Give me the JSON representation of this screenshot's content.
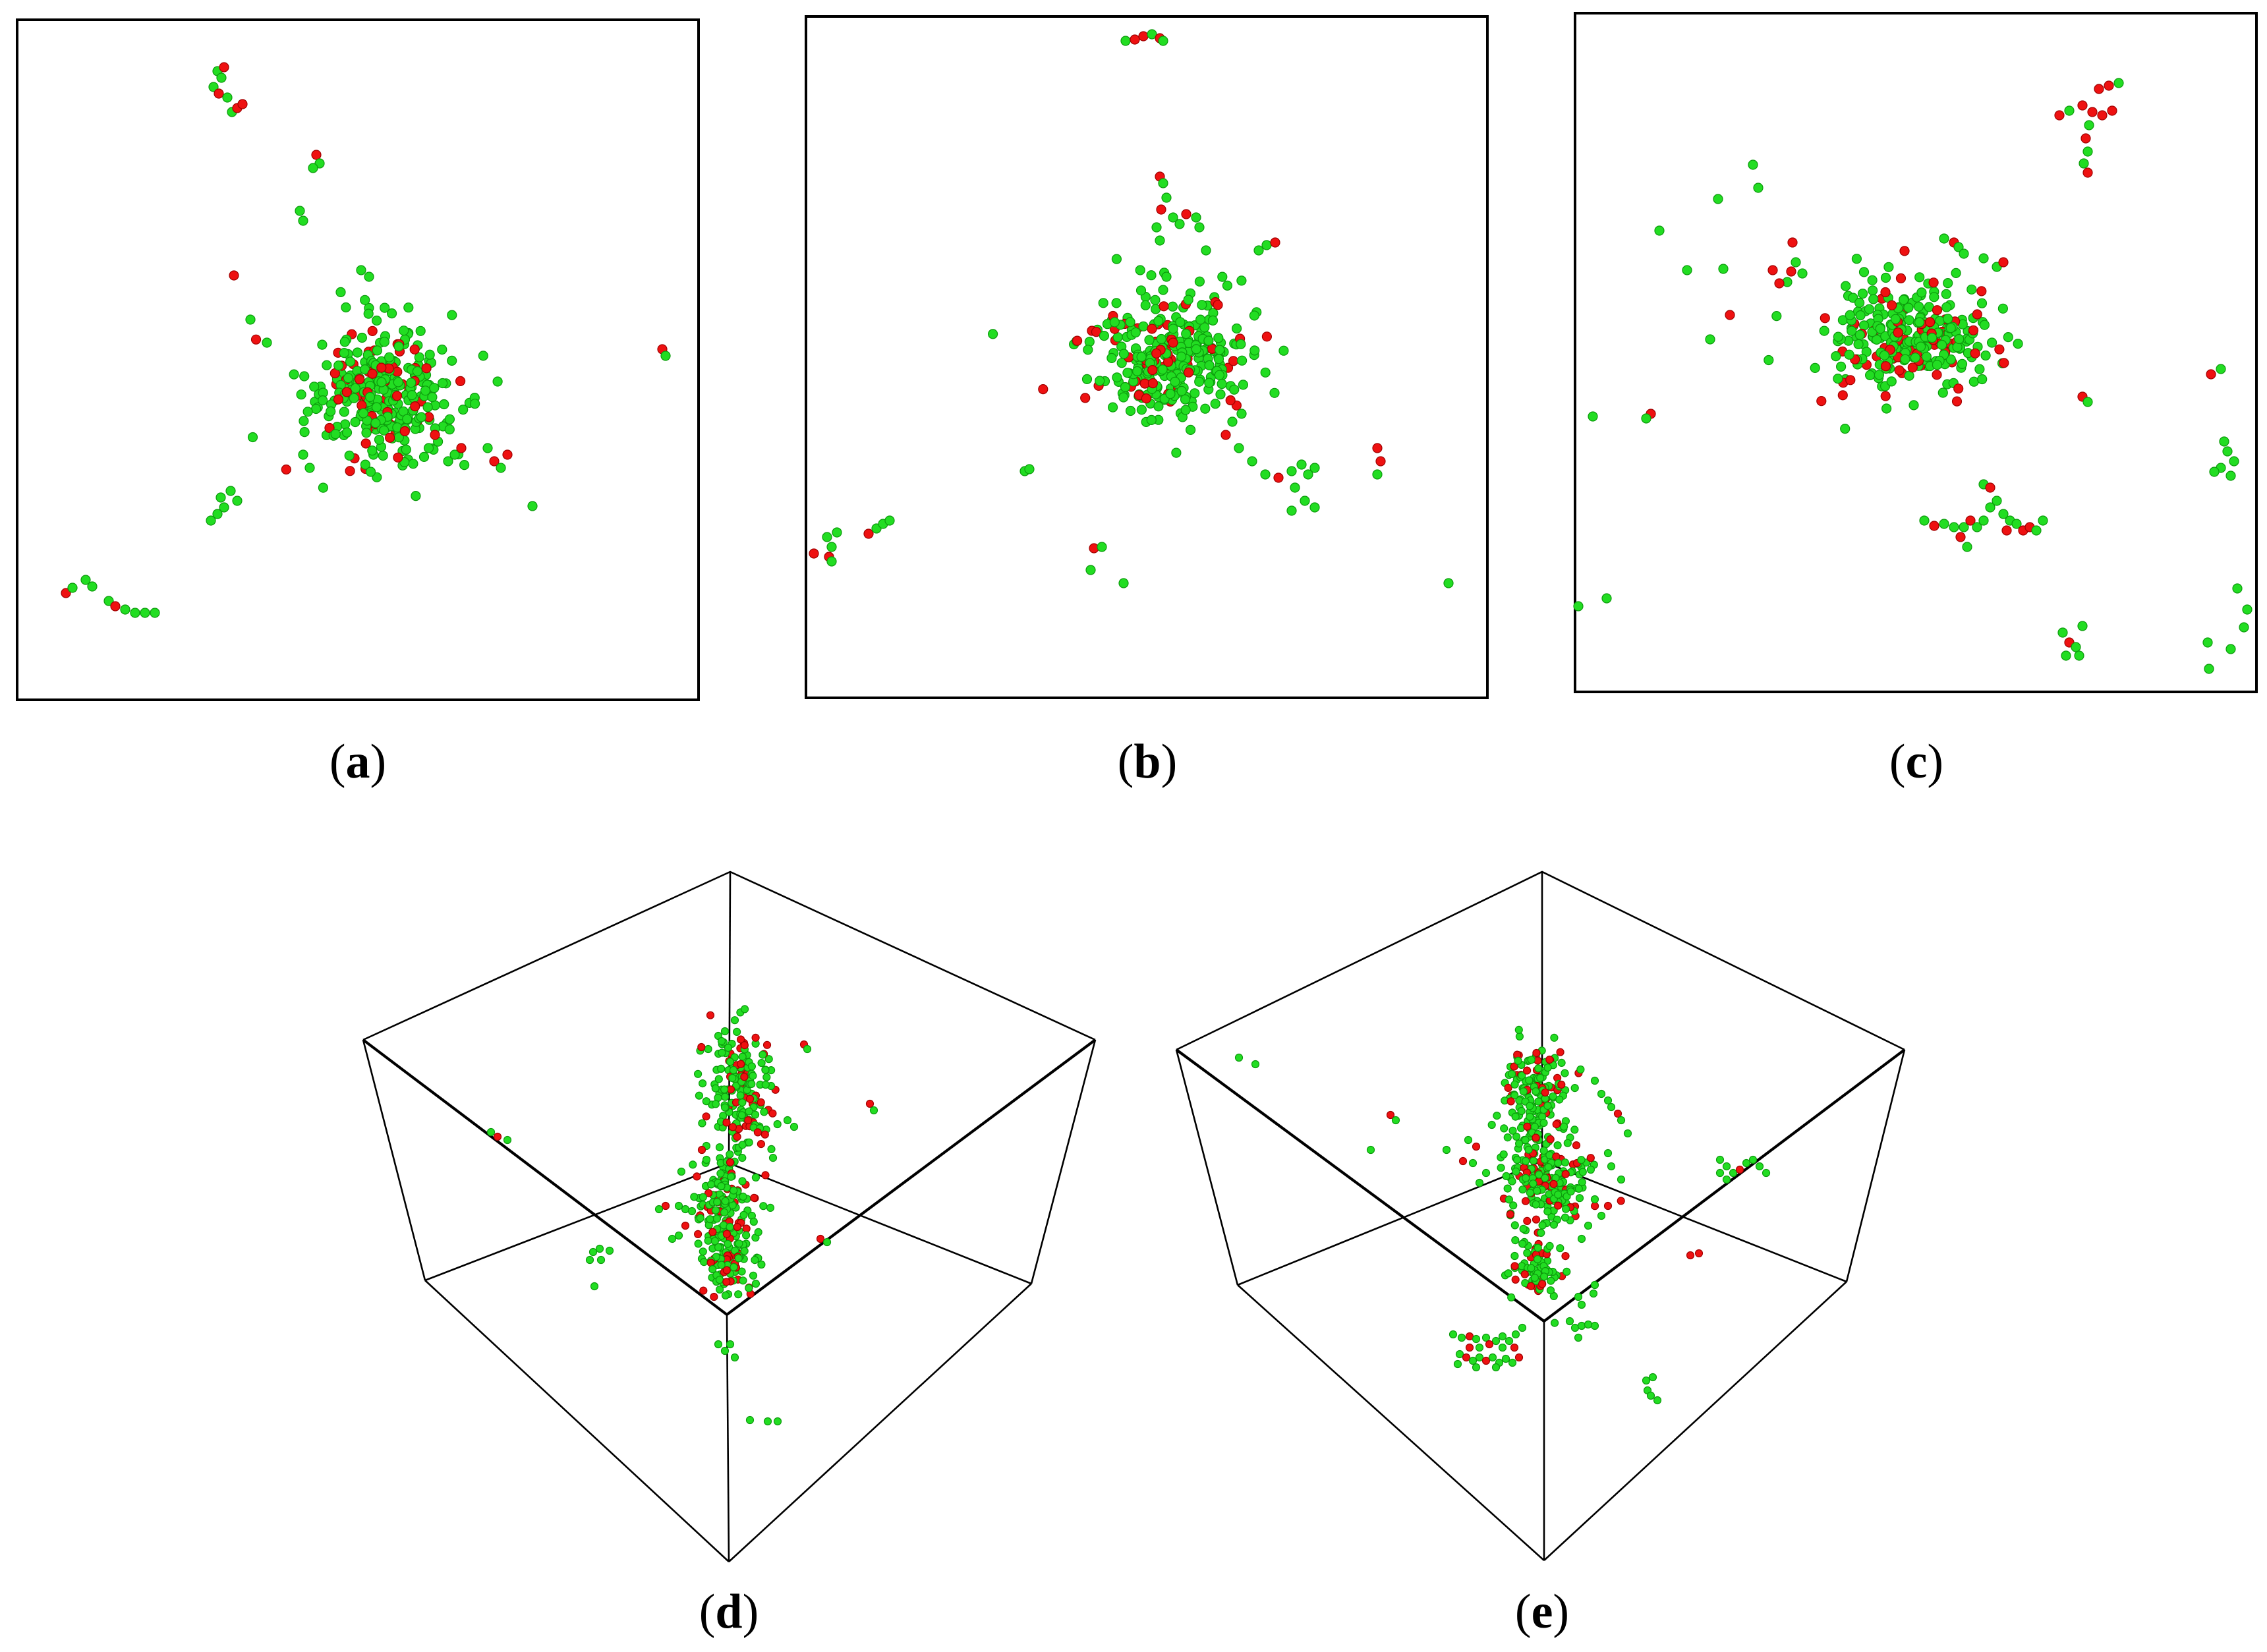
{
  "figure": {
    "panels": [
      {
        "id": "a",
        "view": "2d-projection",
        "caption_open": "(",
        "caption_letter": "a",
        "caption_close": ")"
      },
      {
        "id": "b",
        "view": "2d-projection",
        "caption_open": "(",
        "caption_letter": "b",
        "caption_close": ")"
      },
      {
        "id": "c",
        "view": "2d-projection",
        "caption_open": "(",
        "caption_letter": "c",
        "caption_close": ")"
      },
      {
        "id": "d",
        "view": "3d-box",
        "caption_open": "(",
        "caption_letter": "d",
        "caption_close": ")"
      },
      {
        "id": "e",
        "view": "3d-box",
        "caption_open": "(",
        "caption_letter": "e",
        "caption_close": ")"
      }
    ],
    "colors": {
      "atom_green": "#22dd22",
      "atom_green_edge": "#0c9a0c",
      "atom_red": "#ee1111",
      "atom_red_edge": "#a00000",
      "frame": "#000000",
      "background": "#ffffff"
    }
  }
}
